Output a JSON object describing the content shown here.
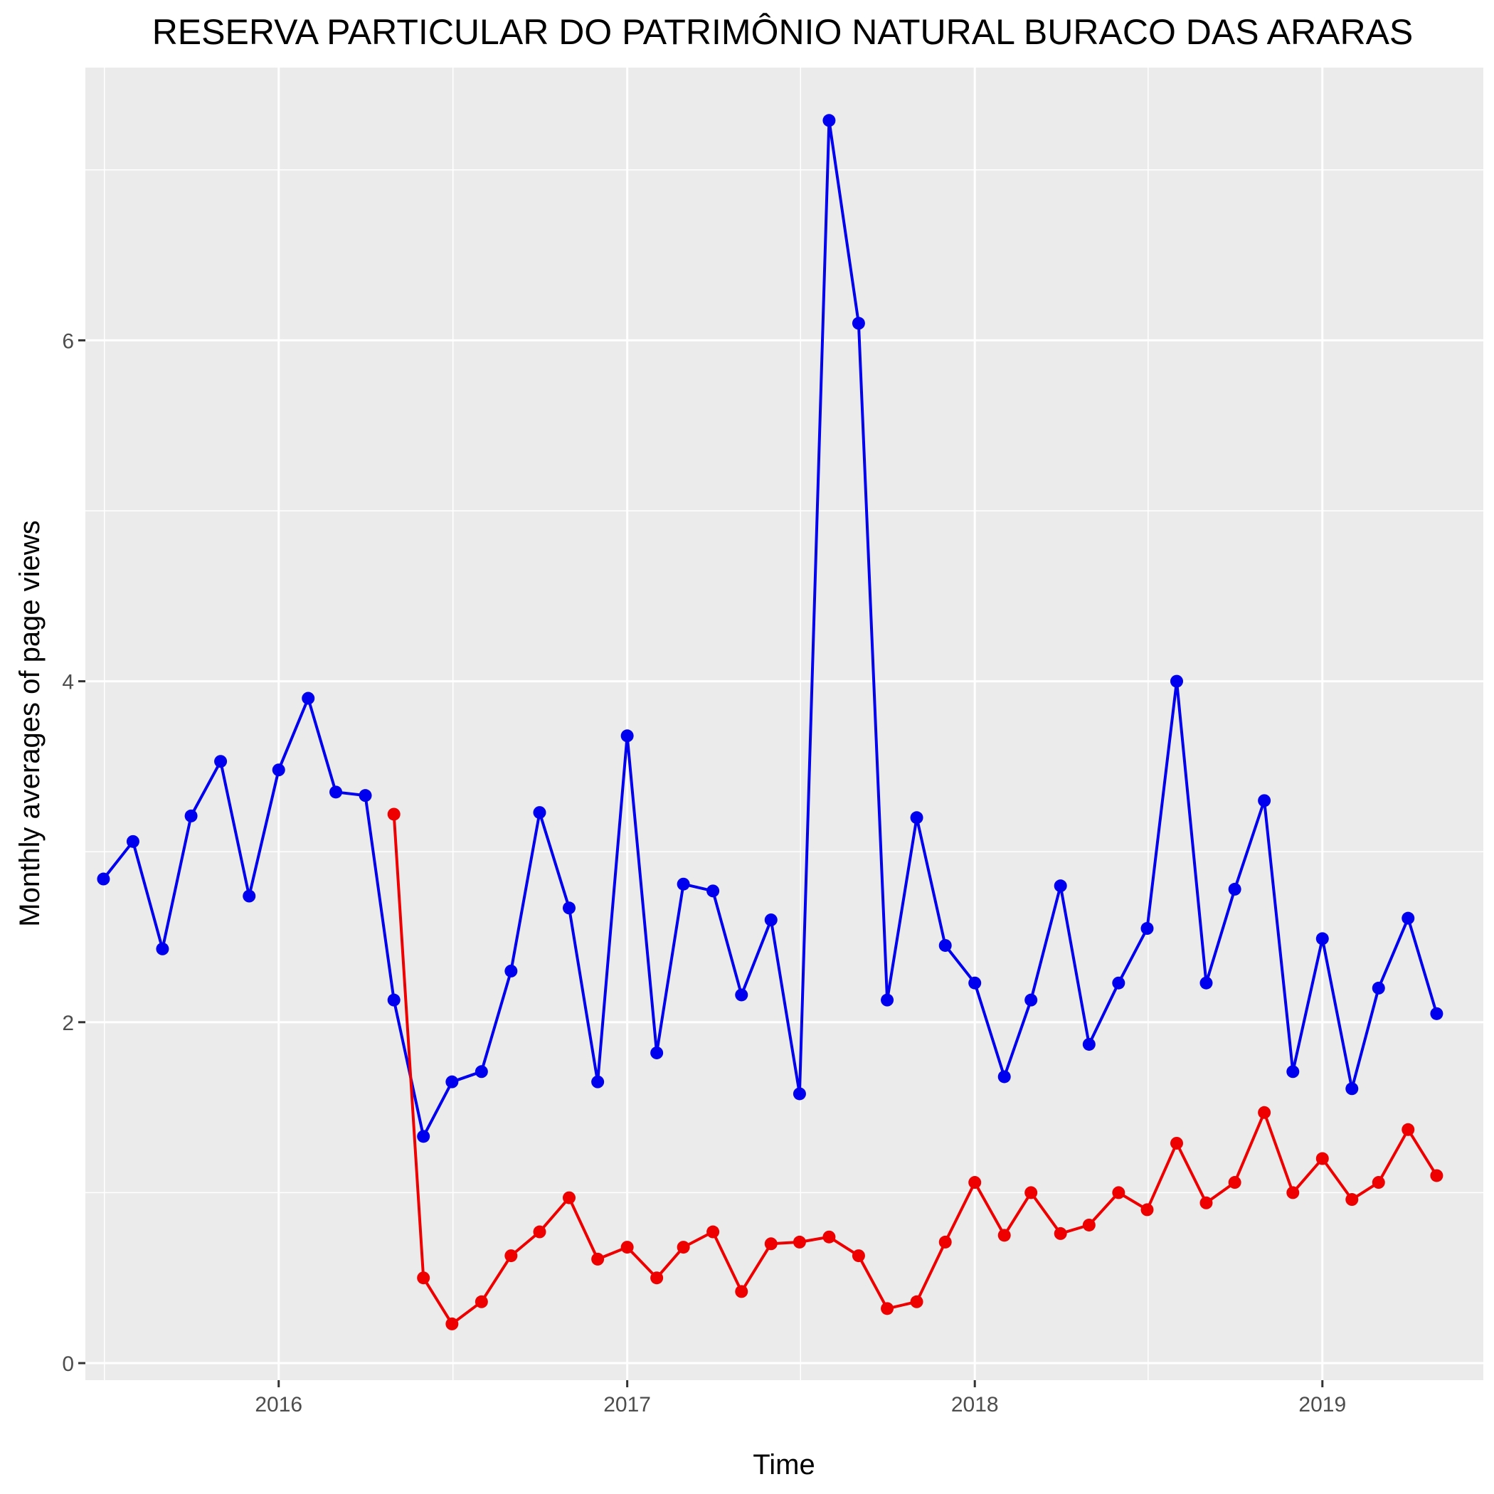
{
  "chart_data": {
    "type": "line",
    "title": "RESERVA PARTICULAR DO PATRIMÔNIO NATURAL BURACO DAS ARARAS",
    "xlabel": "Time",
    "ylabel": "Monthly averages of page views",
    "xlim": [
      "2015-06-12",
      "2019-06-19"
    ],
    "ylim": [
      -0.1,
      7.6
    ],
    "x_ticks": [
      {
        "label": "2016",
        "date": "2016-01-01"
      },
      {
        "label": "2017",
        "date": "2017-01-01"
      },
      {
        "label": "2018",
        "date": "2018-01-01"
      },
      {
        "label": "2019",
        "date": "2019-01-01"
      }
    ],
    "y_ticks": [
      0,
      2,
      4,
      6
    ],
    "grid": true,
    "legend": "none",
    "series": [
      {
        "color": "#0000ee",
        "x": [
          "2015-07-01",
          "2015-08-01",
          "2015-09-01",
          "2015-10-01",
          "2015-11-01",
          "2015-12-01",
          "2016-01-01",
          "2016-02-01",
          "2016-03-01",
          "2016-04-01",
          "2016-05-01",
          "2016-06-01",
          "2016-07-01",
          "2016-08-01",
          "2016-09-01",
          "2016-10-01",
          "2016-11-01",
          "2016-12-01",
          "2017-01-01",
          "2017-02-01",
          "2017-03-01",
          "2017-04-01",
          "2017-05-01",
          "2017-06-01",
          "2017-07-01",
          "2017-08-01",
          "2017-09-01",
          "2017-10-01",
          "2017-11-01",
          "2017-12-01",
          "2018-01-01",
          "2018-02-01",
          "2018-03-01",
          "2018-04-01",
          "2018-05-01",
          "2018-06-01",
          "2018-07-01",
          "2018-08-01",
          "2018-09-01",
          "2018-10-01",
          "2018-11-01",
          "2018-12-01",
          "2019-01-01",
          "2019-02-01",
          "2019-03-01",
          "2019-04-01",
          "2019-05-01"
        ],
        "values": [
          2.84,
          3.06,
          2.43,
          3.21,
          3.53,
          2.74,
          3.48,
          3.9,
          3.35,
          3.33,
          2.13,
          1.33,
          1.65,
          1.71,
          2.3,
          3.23,
          2.67,
          1.65,
          3.68,
          1.82,
          2.81,
          2.77,
          2.16,
          2.6,
          1.58,
          7.29,
          6.1,
          2.13,
          3.2,
          2.45,
          2.23,
          1.68,
          2.13,
          2.8,
          1.87,
          2.23,
          2.55,
          4.0,
          2.23,
          2.78,
          3.3,
          1.71,
          2.49,
          1.61,
          2.2,
          2.61,
          2.05
        ]
      },
      {
        "color": "#ee0000",
        "x": [
          "2016-05-01",
          "2016-06-01",
          "2016-07-01",
          "2016-08-01",
          "2016-09-01",
          "2016-10-01",
          "2016-11-01",
          "2016-12-01",
          "2017-01-01",
          "2017-02-01",
          "2017-03-01",
          "2017-04-01",
          "2017-05-01",
          "2017-06-01",
          "2017-07-01",
          "2017-08-01",
          "2017-09-01",
          "2017-10-01",
          "2017-11-01",
          "2017-12-01",
          "2018-01-01",
          "2018-02-01",
          "2018-03-01",
          "2018-04-01",
          "2018-05-01",
          "2018-06-01",
          "2018-07-01",
          "2018-08-01",
          "2018-09-01",
          "2018-10-01",
          "2018-11-01",
          "2018-12-01",
          "2019-01-01",
          "2019-02-01",
          "2019-03-01",
          "2019-04-01",
          "2019-05-01"
        ],
        "values": [
          3.22,
          0.5,
          0.23,
          0.36,
          0.63,
          0.77,
          0.97,
          0.61,
          0.68,
          0.5,
          0.68,
          0.77,
          0.42,
          0.7,
          0.71,
          0.74,
          0.63,
          0.32,
          0.36,
          0.71,
          1.06,
          0.75,
          1.0,
          0.76,
          0.81,
          1.0,
          0.9,
          1.29,
          0.94,
          1.06,
          1.47,
          1.0,
          1.2,
          0.96,
          1.06,
          1.37,
          1.1
        ]
      }
    ]
  }
}
